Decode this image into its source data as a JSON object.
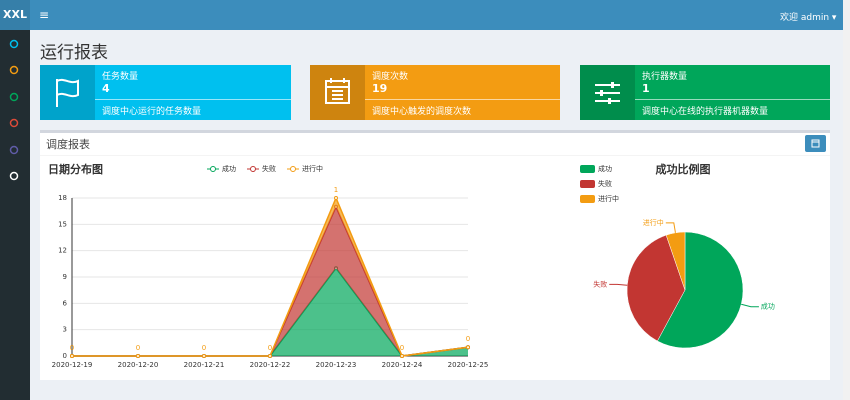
{
  "header": {
    "logo": "XXL",
    "user": "欢迎 admin"
  },
  "page_title": "运行报表",
  "info_boxes": [
    {
      "title": "任务数量",
      "value": 4,
      "description": "调度中心运行的任务数量"
    },
    {
      "title": "调度次数",
      "value": 19,
      "description": "调度中心触发的调度次数"
    },
    {
      "title": "执行器数量",
      "value": 1,
      "description": "调度中心在线的执行器机器数量"
    }
  ],
  "panel_title": "调度报表",
  "chart_data": [
    {
      "type": "line",
      "title": "日期分布图",
      "stacked": true,
      "grid": true,
      "categories": [
        "2020-12-19",
        "2020-12-20",
        "2020-12-21",
        "2020-12-22",
        "2020-12-23",
        "2020-12-24",
        "2020-12-25"
      ],
      "series": [
        {
          "name": "成功",
          "color": "#00a65a",
          "values": [
            0,
            0,
            0,
            0,
            10,
            0,
            1
          ]
        },
        {
          "name": "失败",
          "color": "#c23632",
          "values": [
            0,
            0,
            0,
            0,
            7,
            0,
            0
          ]
        },
        {
          "name": "进行中",
          "color": "#f39c12",
          "values": [
            0,
            0,
            0,
            0,
            1,
            0,
            0
          ]
        }
      ],
      "ylim": [
        0,
        18
      ],
      "yticks": [
        0,
        3,
        6,
        9,
        12,
        15,
        18
      ]
    },
    {
      "type": "pie",
      "title": "成功比例图",
      "categories": [
        "成功",
        "失败",
        "进行中"
      ],
      "values": [
        11,
        7,
        1
      ],
      "colors": [
        "#00a65a",
        "#c23632",
        "#f39c12"
      ]
    }
  ]
}
